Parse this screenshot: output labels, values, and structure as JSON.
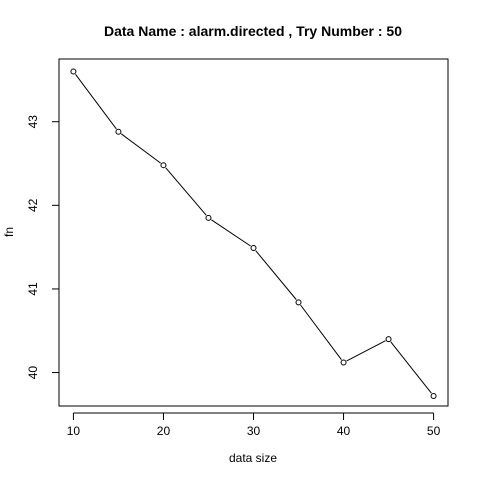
{
  "chart_data": {
    "type": "line",
    "title": "Data Name :  alarm.directed , Try Number :  50",
    "xlabel": "data size",
    "ylabel": "fn",
    "x": [
      10,
      15,
      20,
      25,
      30,
      35,
      40,
      45,
      50
    ],
    "series": [
      {
        "values": [
          43.6,
          42.88,
          42.48,
          41.85,
          41.49,
          40.84,
          40.12,
          40.4,
          39.72
        ]
      }
    ],
    "xlim": [
      8.4,
      51.6
    ],
    "ylim": [
      39.6,
      43.75
    ],
    "x_ticks": [
      10,
      20,
      30,
      40,
      50
    ],
    "x_tick_labels": [
      "10",
      "20",
      "30",
      "40",
      "50"
    ],
    "y_ticks": [
      40,
      41,
      42,
      43
    ],
    "y_tick_labels": [
      "40",
      "41",
      "42",
      "43"
    ],
    "grid": false,
    "legend": "none",
    "line_color": "#000000",
    "marker": "open-circle"
  }
}
